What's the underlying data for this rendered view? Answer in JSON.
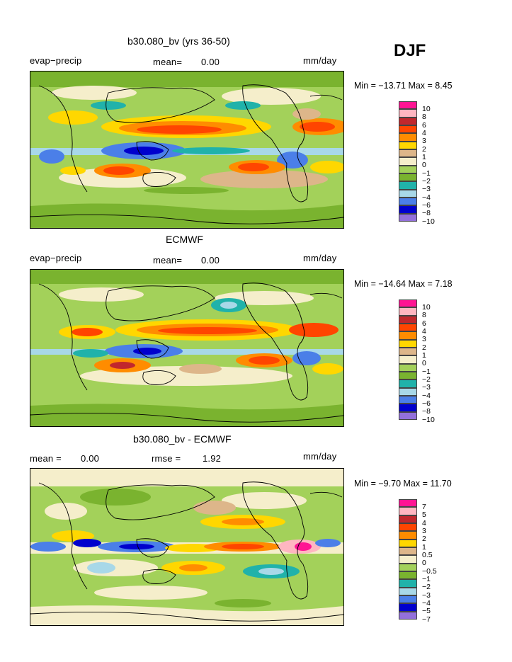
{
  "season": "DJF",
  "units_label": "mm/day",
  "colors": {
    "c10": "#ff1493",
    "c8": "#ffb6c1",
    "c6": "#c1272d",
    "c4": "#ff4500",
    "c3": "#ff8c00",
    "c2": "#ffd700",
    "c1": "#ddb68a",
    "c0": "#f5eecb",
    "cm1": "#a3d15a",
    "cm2": "#7ab32f",
    "cm3": "#20b2aa",
    "cm4": "#a8d8e8",
    "cm6": "#4b7fe8",
    "cm8": "#0000cd",
    "cm10": "#9370db"
  },
  "panels": [
    {
      "title": "b30.080_bv (yrs 36-50)",
      "left_label": "evap−precip",
      "center_label": "mean=",
      "center_value": "0.00",
      "right_label": "mm/day",
      "min_max": "Min = −13.71 Max =    8.45",
      "levels": [
        "10",
        "8",
        "6",
        "4",
        "3",
        "2",
        "1",
        "0",
        "−1",
        "−2",
        "−3",
        "−4",
        "−6",
        "−8",
        "−10"
      ]
    },
    {
      "title": "ECMWF",
      "left_label": "evap−precip",
      "center_label": "mean=",
      "center_value": "0.00",
      "right_label": "mm/day",
      "min_max": "Min = −14.64 Max =    7.18",
      "levels": [
        "10",
        "8",
        "6",
        "4",
        "3",
        "2",
        "1",
        "0",
        "−1",
        "−2",
        "−3",
        "−4",
        "−6",
        "−8",
        "−10"
      ]
    },
    {
      "title": "b30.080_bv - ECMWF",
      "left_label": "mean =",
      "left_value": "0.00",
      "center_label": "rmse =",
      "center_value": "1.92",
      "right_label": "mm/day",
      "min_max": "Min =   −9.70 Max =  11.70",
      "levels": [
        "7",
        "5",
        "4",
        "3",
        "2",
        "1",
        "0.5",
        "0",
        "−0.5",
        "−1",
        "−2",
        "−3",
        "−4",
        "−5",
        "−7"
      ]
    }
  ]
}
